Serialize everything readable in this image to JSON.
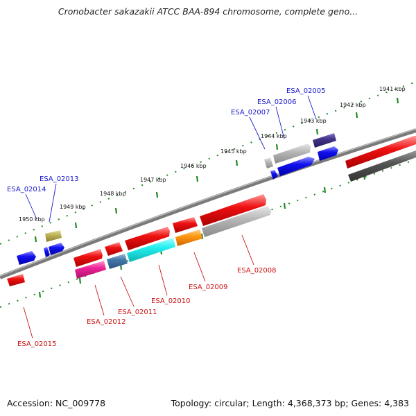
{
  "title": "Cronobacter sakazakii ATCC BAA-894 chromosome, complete geno...",
  "accession": "Accession: NC_009778",
  "topology": "Topology: circular; Length: 4,368,373 bp; Genes: 4,383",
  "ticks": [
    "1941 kbp",
    "1942 kbp",
    "1943 kbp",
    "1944 kbp",
    "1945 kbp",
    "1946 kbp",
    "1947 kbp",
    "1948 kbp",
    "1949 kbp",
    "1950 kbp"
  ],
  "gene_labels_upper": [
    "ESA_02005",
    "ESA_02006",
    "ESA_02007",
    "ESA_02013",
    "ESA_02014"
  ],
  "gene_labels_lower": [
    "ESA_02008",
    "ESA_02009",
    "ESA_02010",
    "ESA_02011",
    "ESA_02012",
    "ESA_02015"
  ],
  "colors": {
    "red": "#ee1111",
    "blue": "#1111ee",
    "gray": "#aaaaaa",
    "darkgray": "#555555",
    "navy": "#443388",
    "olive": "#bbb055",
    "cyan": "#22eeee",
    "orange": "#ff9911",
    "steelblue": "#4477aa",
    "magenta": "#ee2299",
    "label_upper": "#1a1acc",
    "label_lower": "#cc1111",
    "ruler": "#228822"
  }
}
